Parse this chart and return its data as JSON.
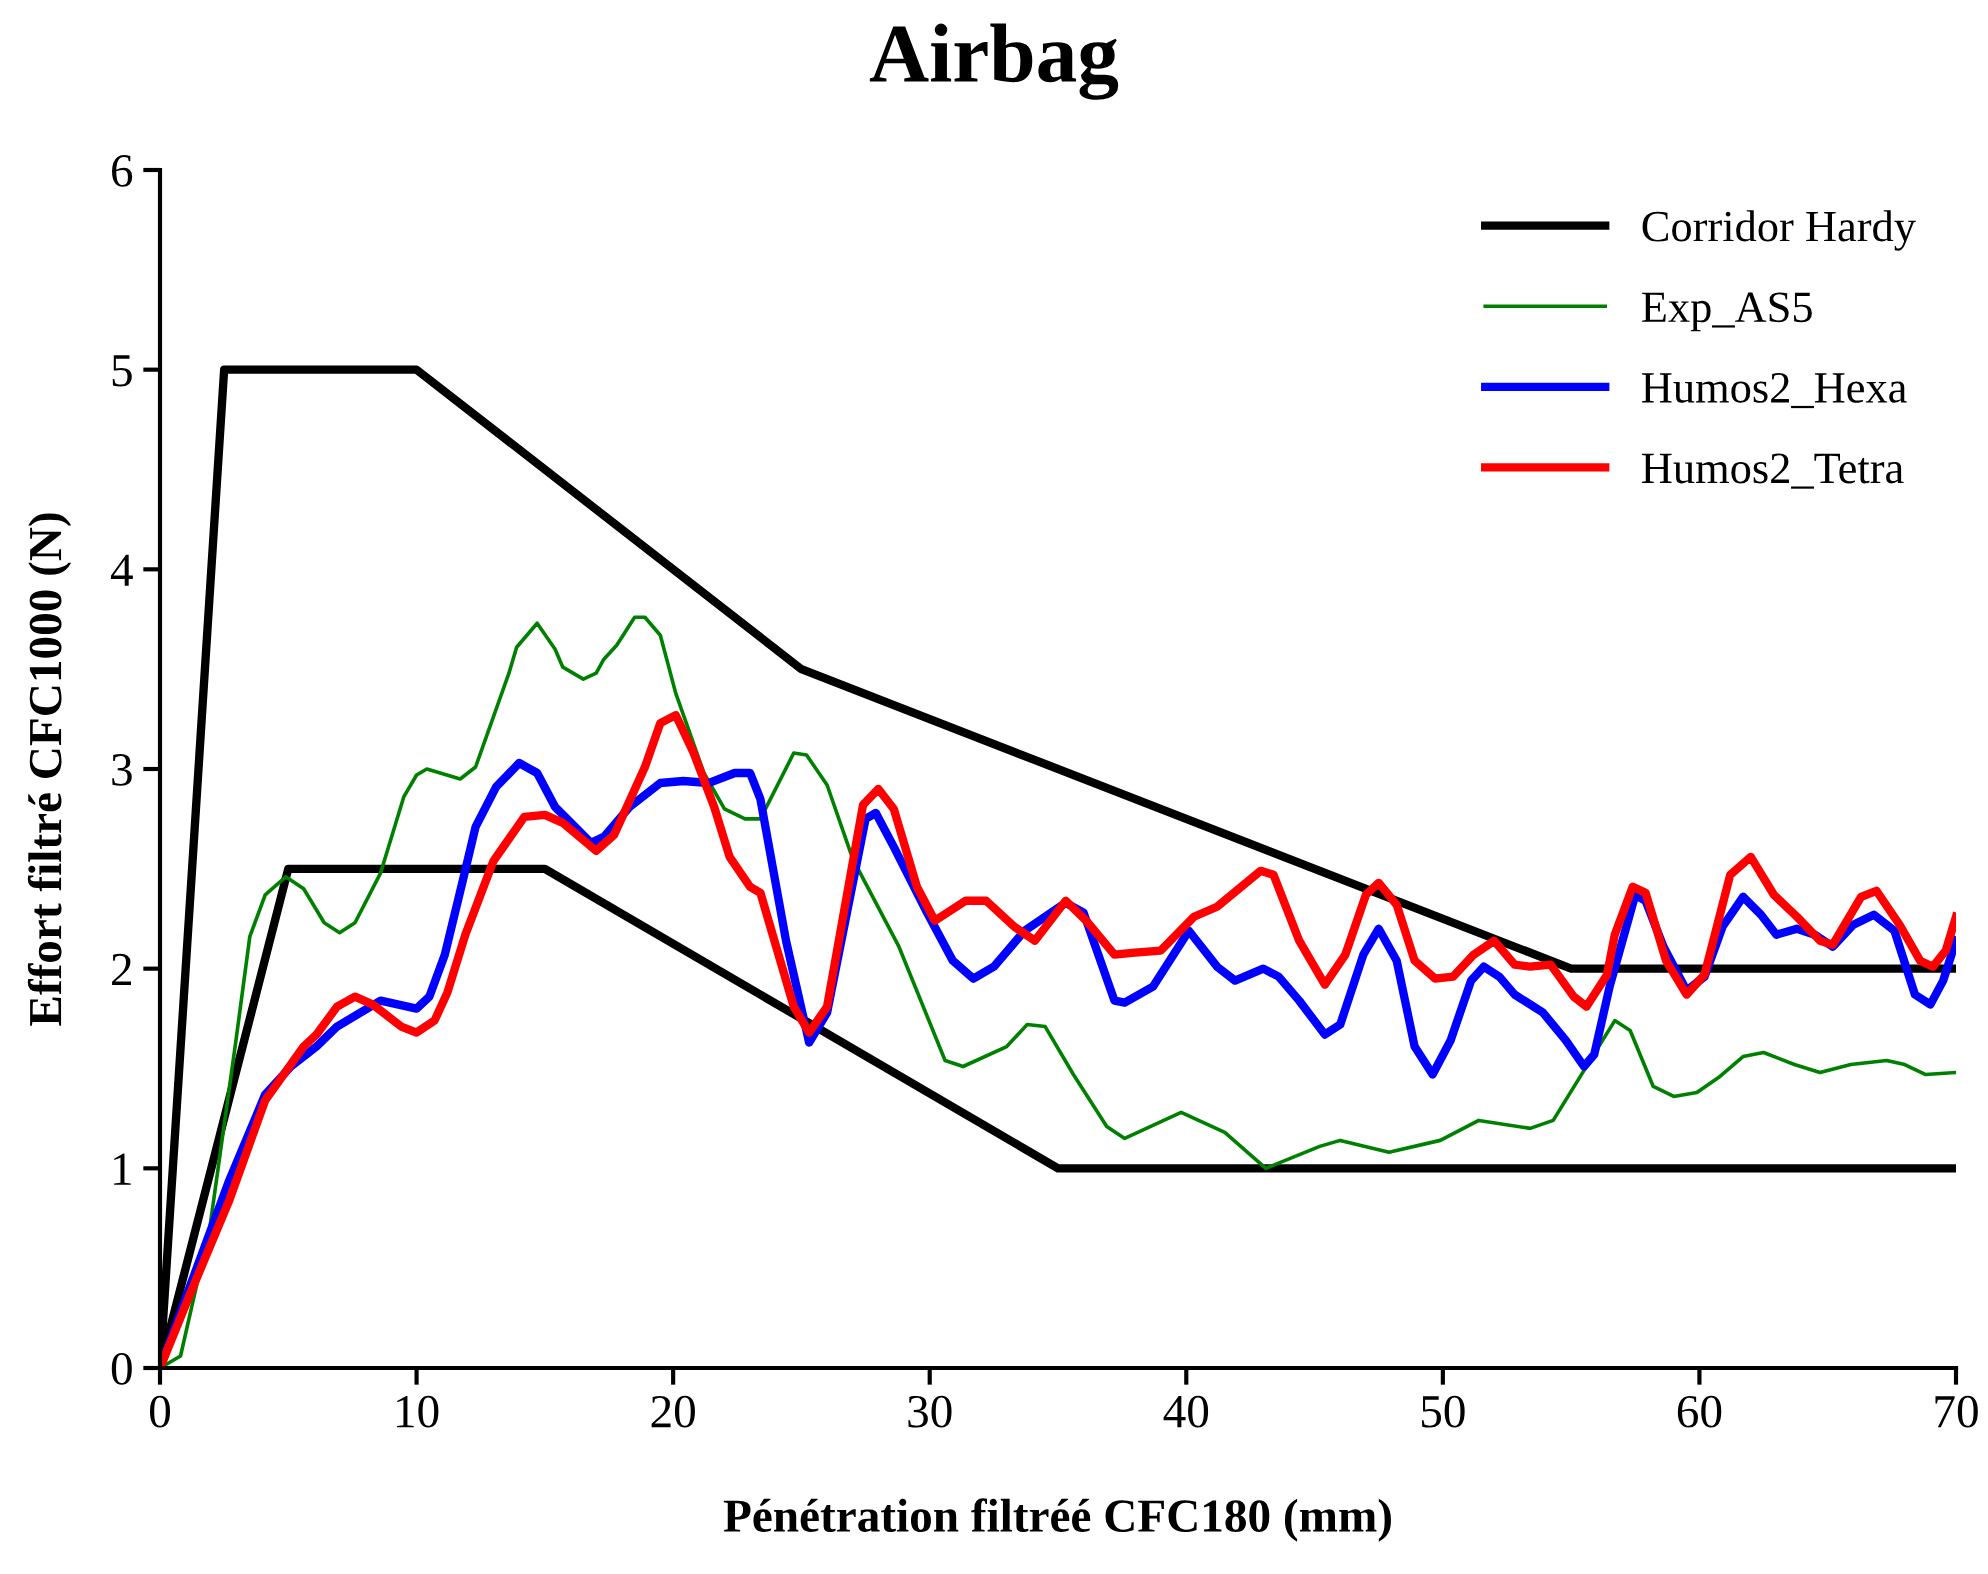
{
  "chart_data": {
    "type": "line",
    "title": "Airbag",
    "xlabel": "Pénétration filtréé CFC180 (mm)",
    "ylabel": "Effort filtré CFC1000 (N)",
    "xlim": [
      0,
      70
    ],
    "ylim": [
      0,
      6
    ],
    "xticks": [
      0,
      10,
      20,
      30,
      40,
      50,
      60,
      70
    ],
    "yticks": [
      0,
      1,
      2,
      3,
      4,
      5,
      6
    ],
    "grid": false,
    "legend": "top right",
    "marker": "none",
    "line_style": "solid",
    "series": [
      {
        "name": "Corridor Hardy",
        "color": "#000000",
        "x": [
          0,
          2.5,
          10,
          25,
          55,
          70
        ],
        "values": [
          0,
          5,
          5,
          3.5,
          2,
          2
        ]
      },
      {
        "color": "#000000",
        "x": [
          0,
          5,
          15,
          35,
          70
        ],
        "values": [
          0,
          2.5,
          2.5,
          1,
          1
        ]
      },
      {
        "name": "Exp_AS5",
        "color": "#008000",
        "x": [
          0,
          0.8,
          1.95,
          2.96,
          3.5,
          4.1,
          4.9,
          5.6,
          6.4,
          7.0,
          7.6,
          8.6,
          9.5,
          10.0,
          10.4,
          11.7,
          12.3,
          13.6,
          13.9,
          14.7,
          15.4,
          15.7,
          16.5,
          17.0,
          17.3,
          17.8,
          18.5,
          18.9,
          19.5,
          20.1,
          21.2,
          22.0,
          22.8,
          23.4,
          24.7,
          25.2,
          26.0,
          27.0,
          28.8,
          30.6,
          31.3,
          33.0,
          33.8,
          34.5,
          35.6,
          36.9,
          37.6,
          39.8,
          41.5,
          43.1,
          45.2,
          46.0,
          47.9,
          49.9,
          51.4,
          53.4,
          54.3,
          56.7,
          57.3,
          58.2,
          59.0,
          59.9,
          60.8,
          61.7,
          62.5,
          63.7,
          64.7,
          65.9,
          67.3,
          68.0,
          68.8,
          70
        ],
        "values": [
          0,
          0.06,
          0.71,
          1.64,
          2.16,
          2.37,
          2.46,
          2.4,
          2.23,
          2.18,
          2.23,
          2.48,
          2.86,
          2.97,
          3.0,
          2.95,
          3.01,
          3.48,
          3.61,
          3.73,
          3.6,
          3.51,
          3.45,
          3.48,
          3.55,
          3.62,
          3.76,
          3.76,
          3.67,
          3.38,
          2.98,
          2.8,
          2.75,
          2.75,
          3.08,
          3.07,
          2.92,
          2.55,
          2.11,
          1.54,
          1.51,
          1.61,
          1.72,
          1.71,
          1.47,
          1.21,
          1.15,
          1.28,
          1.18,
          1.0,
          1.11,
          1.14,
          1.08,
          1.14,
          1.24,
          1.2,
          1.24,
          1.74,
          1.69,
          1.41,
          1.36,
          1.38,
          1.46,
          1.56,
          1.58,
          1.52,
          1.48,
          1.52,
          1.54,
          1.52,
          1.47,
          1.48
        ]
      },
      {
        "name": "Humos2_Hexa",
        "color": "#0000ff",
        "x": [
          0,
          1.17,
          2.7,
          4.1,
          5.1,
          6.1,
          6.9,
          8.6,
          10.0,
          10.5,
          11.1,
          11.8,
          12.3,
          13.1,
          14.0,
          14.7,
          15.4,
          16.8,
          17.3,
          18.3,
          19.5,
          20.4,
          21.4,
          22.4,
          23.0,
          23.4,
          24.4,
          25.3,
          26.0,
          27.5,
          27.9,
          28.6,
          29.9,
          30.9,
          31.7,
          32.5,
          33.7,
          35.3,
          36.0,
          37.2,
          37.6,
          38.7,
          40.1,
          41.2,
          41.9,
          43.0,
          43.6,
          44.4,
          45.4,
          46.0,
          46.9,
          47.5,
          48.2,
          48.9,
          49.6,
          50.3,
          51.1,
          51.6,
          52.2,
          52.8,
          53.9,
          54.8,
          55.5,
          55.9,
          56.5,
          57.5,
          57.9,
          58.6,
          59.5,
          60.2,
          60.9,
          61.7,
          62.4,
          63.0,
          63.8,
          64.5,
          65.2,
          66.0,
          66.8,
          67.6,
          68.4,
          69.0,
          69.5,
          70
        ],
        "values": [
          0,
          0.41,
          0.94,
          1.37,
          1.51,
          1.61,
          1.71,
          1.84,
          1.8,
          1.86,
          2.07,
          2.44,
          2.71,
          2.91,
          3.03,
          2.98,
          2.81,
          2.63,
          2.66,
          2.81,
          2.93,
          2.94,
          2.93,
          2.98,
          2.98,
          2.85,
          2.14,
          1.63,
          1.78,
          2.75,
          2.78,
          2.61,
          2.28,
          2.04,
          1.95,
          2.01,
          2.19,
          2.33,
          2.28,
          1.84,
          1.83,
          1.91,
          2.19,
          2.01,
          1.94,
          2.0,
          1.96,
          1.84,
          1.67,
          1.72,
          2.07,
          2.2,
          2.04,
          1.61,
          1.47,
          1.64,
          1.94,
          2.01,
          1.96,
          1.87,
          1.78,
          1.64,
          1.51,
          1.57,
          1.91,
          2.37,
          2.34,
          2.11,
          1.89,
          1.96,
          2.21,
          2.36,
          2.27,
          2.17,
          2.2,
          2.17,
          2.11,
          2.22,
          2.27,
          2.19,
          1.87,
          1.82,
          1.94,
          2.14
        ]
      },
      {
        "name": "Humos2_Tetra",
        "color": "#ff0000",
        "x": [
          0,
          1.17,
          2.7,
          4.1,
          5.6,
          6.1,
          6.9,
          7.6,
          8.3,
          9.4,
          10.0,
          10.7,
          11.2,
          11.9,
          13.0,
          14.2,
          15.0,
          15.7,
          17.0,
          17.7,
          18.9,
          19.5,
          20.1,
          20.8,
          21.6,
          22.2,
          23.0,
          23.4,
          24.7,
          25.3,
          26.0,
          27.4,
          28.0,
          28.6,
          29.5,
          30.2,
          31.4,
          32.2,
          33.3,
          34.1,
          35.3,
          36.1,
          37.2,
          38.0,
          39.0,
          40.3,
          41.2,
          42.9,
          43.4,
          44.4,
          45.4,
          46.2,
          47.0,
          47.5,
          48.2,
          48.9,
          49.7,
          50.4,
          51.2,
          52.0,
          52.8,
          53.4,
          54.2,
          55.1,
          55.6,
          56.4,
          56.7,
          57.4,
          57.9,
          58.7,
          59.5,
          60.2,
          61.2,
          62.0,
          62.9,
          63.8,
          64.7,
          65.2,
          66.3,
          66.9,
          67.8,
          68.6,
          69.1,
          69.6,
          70
        ],
        "values": [
          0,
          0.37,
          0.84,
          1.34,
          1.61,
          1.67,
          1.81,
          1.86,
          1.82,
          1.71,
          1.68,
          1.74,
          1.88,
          2.17,
          2.54,
          2.76,
          2.77,
          2.73,
          2.59,
          2.67,
          3.01,
          3.23,
          3.27,
          3.08,
          2.81,
          2.56,
          2.41,
          2.38,
          1.81,
          1.68,
          1.81,
          2.82,
          2.9,
          2.8,
          2.41,
          2.24,
          2.34,
          2.34,
          2.21,
          2.14,
          2.34,
          2.24,
          2.07,
          2.08,
          2.09,
          2.26,
          2.31,
          2.49,
          2.47,
          2.14,
          1.92,
          2.07,
          2.37,
          2.43,
          2.32,
          2.04,
          1.95,
          1.96,
          2.07,
          2.14,
          2.02,
          2.01,
          2.02,
          1.86,
          1.81,
          1.97,
          2.17,
          2.41,
          2.38,
          2.04,
          1.87,
          1.97,
          2.47,
          2.56,
          2.37,
          2.26,
          2.14,
          2.12,
          2.36,
          2.39,
          2.22,
          2.04,
          2.01,
          2.09,
          2.26
        ]
      }
    ]
  }
}
